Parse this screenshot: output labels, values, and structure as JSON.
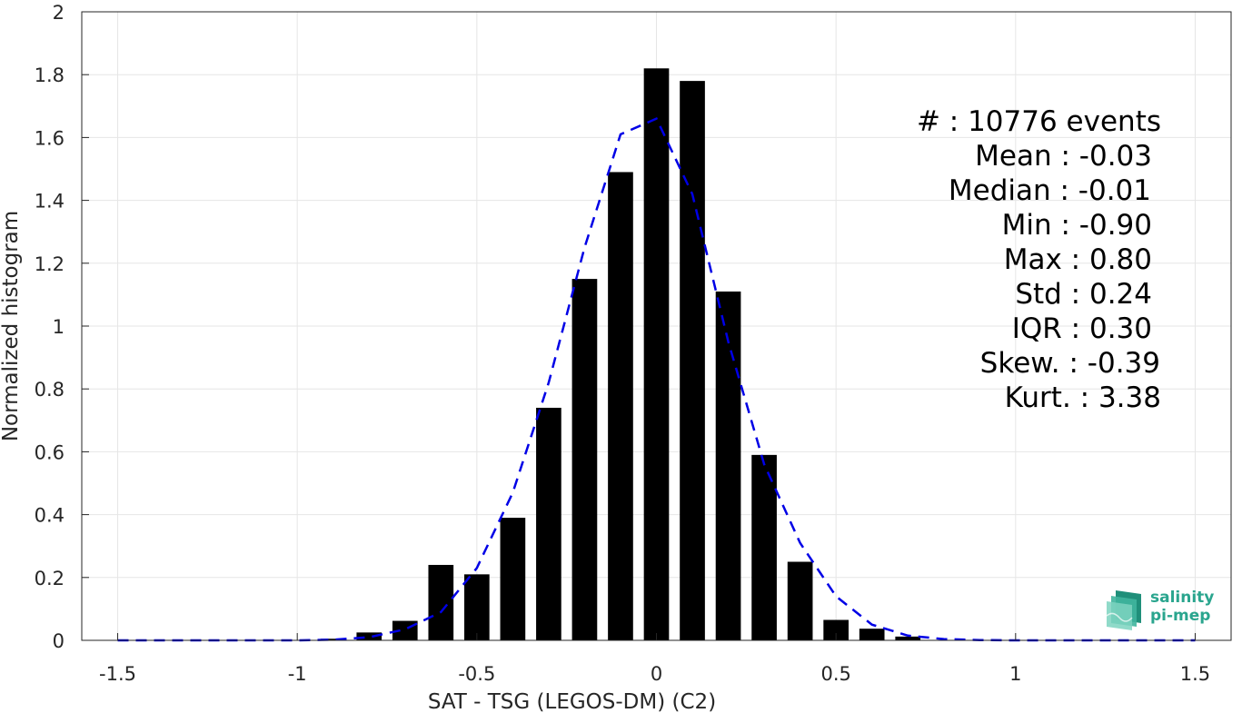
{
  "chart_data": {
    "type": "bar",
    "xlabel": "SAT - TSG (LEGOS-DM) (C2)",
    "ylabel": "Normalized histogram",
    "xlim": [
      -1.6,
      1.6
    ],
    "ylim": [
      0,
      2
    ],
    "x_ticks": [
      -1.5,
      -1,
      -0.5,
      0,
      0.5,
      1,
      1.5
    ],
    "x_tick_labels": [
      "-1.5",
      "-1",
      "-0.5",
      "0",
      "0.5",
      "1",
      "1.5"
    ],
    "y_ticks": [
      0,
      0.2,
      0.4,
      0.6,
      0.8,
      1,
      1.2,
      1.4,
      1.6,
      1.8,
      2
    ],
    "y_tick_labels": [
      "0",
      "0.2",
      "0.4",
      "0.6",
      "0.8",
      "1",
      "1.2",
      "1.4",
      "1.6",
      "1.8",
      "2"
    ],
    "grid": true,
    "bar_width": 0.07,
    "bars": {
      "color": "#000000",
      "x": [
        -0.9,
        -0.8,
        -0.7,
        -0.6,
        -0.5,
        -0.4,
        -0.3,
        -0.2,
        -0.1,
        0.0,
        0.1,
        0.2,
        0.3,
        0.4,
        0.5,
        0.6,
        0.7
      ],
      "values": [
        0.005,
        0.025,
        0.062,
        0.24,
        0.21,
        0.39,
        0.74,
        1.15,
        1.49,
        1.82,
        1.78,
        1.11,
        0.59,
        0.25,
        0.065,
        0.037,
        0.012
      ]
    },
    "fit_curve": {
      "color": "#0000e6",
      "style": "dashed",
      "x": [
        -1.5,
        -1.4,
        -1.3,
        -1.2,
        -1.1,
        -1.0,
        -0.9,
        -0.8,
        -0.7,
        -0.6,
        -0.5,
        -0.4,
        -0.3,
        -0.2,
        -0.1,
        0.0,
        0.1,
        0.2,
        0.3,
        0.4,
        0.5,
        0.6,
        0.7,
        0.8,
        0.9,
        1.0,
        1.1,
        1.2,
        1.3,
        1.4,
        1.5
      ],
      "y": [
        0,
        0,
        0,
        0,
        0,
        0,
        0.002,
        0.01,
        0.035,
        0.09,
        0.23,
        0.47,
        0.82,
        1.25,
        1.61,
        1.66,
        1.42,
        0.95,
        0.56,
        0.31,
        0.14,
        0.05,
        0.015,
        0.004,
        0.001,
        0,
        0,
        0,
        0,
        0,
        0
      ]
    },
    "stats_lines": [
      "#  : 10776 events",
      "Mean : -0.03",
      "Median : -0.01",
      "Min : -0.90",
      "Max : 0.80",
      "Std : 0.24",
      "IQR : 0.30",
      "Skew. : -0.39",
      "Kurt. : 3.38"
    ]
  },
  "logo": {
    "line1": "salinity",
    "line2": "pi-mep",
    "icon": "salinity-pimep-logo-icon",
    "color": "#2aa58e"
  }
}
